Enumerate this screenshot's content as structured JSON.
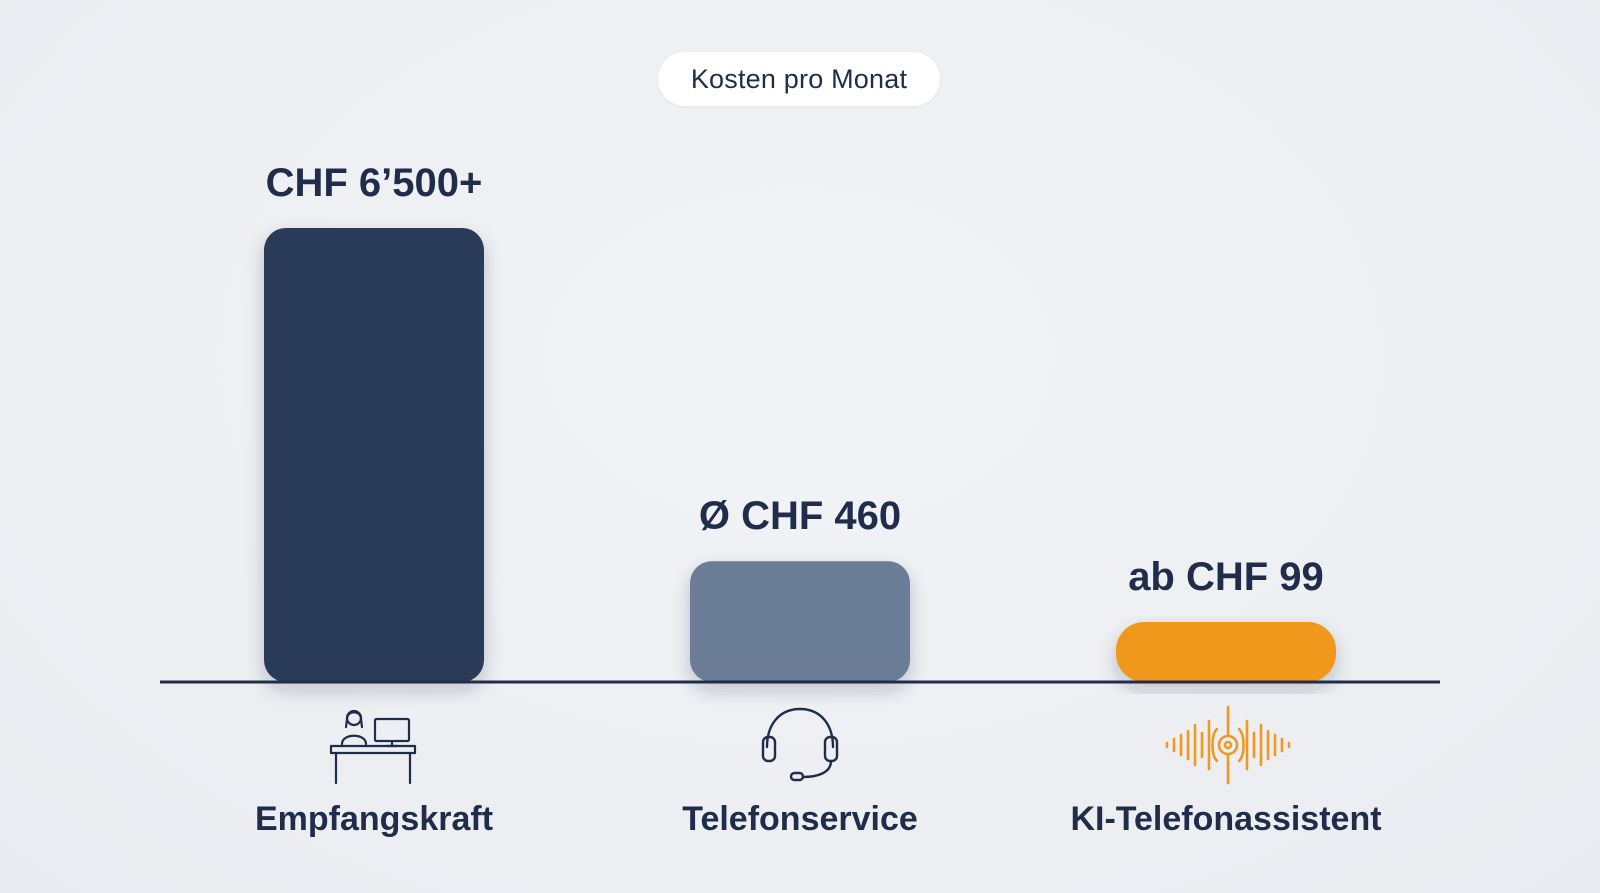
{
  "title": "Kosten pro Monat",
  "chart_data": {
    "type": "bar",
    "categories": [
      "Empfangskraft",
      "Telefonservice",
      "KI-Telefonassistent"
    ],
    "values": [
      6500,
      460,
      99
    ],
    "value_labels": [
      "CHF 6’500+",
      "Ø CHF 460",
      "ab CHF 99"
    ],
    "icons": [
      "receptionist-desk-icon",
      "headset-icon",
      "sound-wave-icon"
    ],
    "colors": [
      "#2a3a58",
      "#6a7b96",
      "#f0981f"
    ],
    "axis_color": "#1f2d4a",
    "text_color": "#1f2d4a",
    "grid": false,
    "title": "Kosten pro Monat"
  }
}
